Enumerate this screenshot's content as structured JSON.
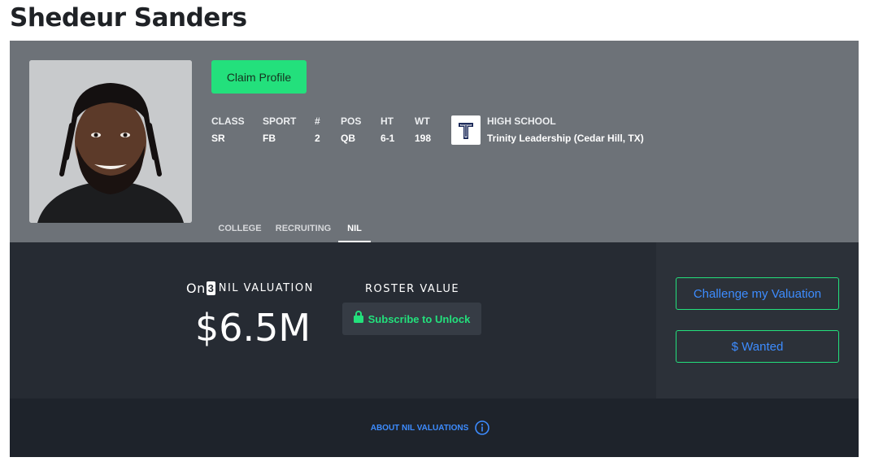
{
  "player": {
    "name": "Shedeur Sanders"
  },
  "header": {
    "claim_label": "Claim Profile",
    "stats": [
      {
        "label": "CLASS",
        "value": "SR"
      },
      {
        "label": "SPORT",
        "value": "FB"
      },
      {
        "label": "#",
        "value": "2"
      },
      {
        "label": "POS",
        "value": "QB"
      },
      {
        "label": "HT",
        "value": "6-1"
      },
      {
        "label": "WT",
        "value": "198"
      }
    ],
    "school": {
      "label": "HIGH SCHOOL",
      "value": "Trinity Leadership (Cedar Hill, TX)"
    },
    "tabs": [
      {
        "label": "COLLEGE",
        "active": false
      },
      {
        "label": "RECRUITING",
        "active": false
      },
      {
        "label": "NIL",
        "active": true
      }
    ]
  },
  "nil": {
    "brand_prefix": "On",
    "brand_box": "3",
    "valuation_label": "NIL VALUATION",
    "valuation_value": "$6.5M",
    "roster_label": "ROSTER VALUE",
    "unlock_label": "Subscribe to Unlock"
  },
  "side": {
    "challenge_label": "Challenge my Valuation",
    "wanted_label": "$ Wanted"
  },
  "footer": {
    "about_label": "ABOUT NIL VALUATIONS"
  },
  "colors": {
    "accent_green": "#23e07c",
    "link_blue": "#3d8cff",
    "header_bg": "#6d7278",
    "panel_bg": "#262b33"
  },
  "icons": {
    "lock": "lock-icon",
    "info": "info-icon",
    "school_logo": "trinity-t-logo"
  }
}
